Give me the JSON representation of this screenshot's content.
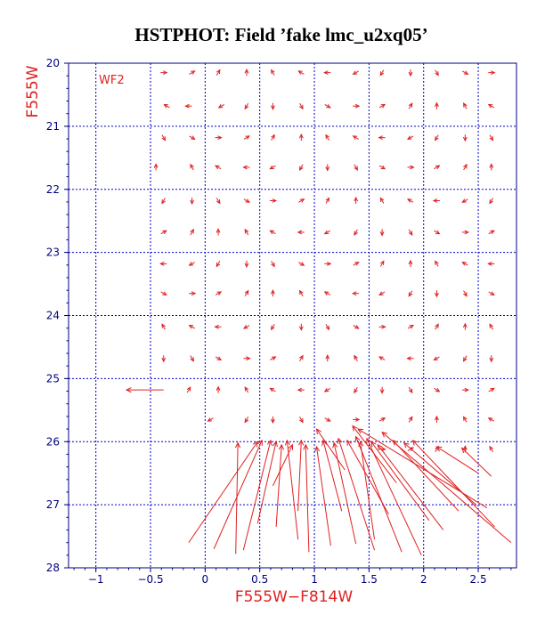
{
  "chart_data": {
    "type": "quiver",
    "title": "HSTPHOT: Field ’fake lmc_u2xq05’",
    "xlabel": "F555W−F814W",
    "ylabel": "F555W",
    "chip_label": "WF2",
    "xlim": [
      -1.25,
      2.85
    ],
    "ylim": [
      28,
      20
    ],
    "y_inverted": true,
    "grid": true,
    "x_ticks": [
      -1,
      -0.5,
      0,
      0.5,
      1,
      1.5,
      2,
      2.5
    ],
    "x_tick_labels": [
      "−1",
      "−0.5",
      "0",
      "0.5",
      "1",
      "1.5",
      "2",
      "2.5"
    ],
    "y_ticks": [
      20,
      21,
      22,
      23,
      24,
      25,
      26,
      27,
      28
    ],
    "y_tick_labels": [
      "20",
      "21",
      "22",
      "23",
      "24",
      "25",
      "26",
      "27",
      "28"
    ],
    "colors": {
      "frame": "#000080",
      "grid": "#0000cc",
      "vectors": "#e02020",
      "title": "#000000"
    },
    "small_vectors": {
      "note_grid_color_values": [
        -0.35,
        -0.1,
        0.15,
        0.35,
        0.65,
        0.85,
        1.15,
        1.35,
        1.65,
        1.85,
        2.15,
        2.35,
        2.65
      ],
      "rows": [
        {
          "mag": 20.15,
          "c": [
            -0.38,
            -0.12,
            0.12,
            0.38,
            0.62,
            0.88,
            1.12,
            1.38,
            1.62,
            1.88,
            2.12,
            2.38,
            2.62
          ]
        },
        {
          "mag": 20.68,
          "c": [
            -0.35,
            -0.15,
            0.15,
            0.38,
            0.62,
            0.88,
            1.12,
            1.38,
            1.62,
            1.88,
            2.12,
            2.38,
            2.62
          ]
        },
        {
          "mag": 21.18,
          "c": [
            -0.38,
            -0.12,
            0.12,
            0.38,
            0.62,
            0.88,
            1.12,
            1.38,
            1.62,
            1.88,
            2.12,
            2.38,
            2.62
          ]
        },
        {
          "mag": 21.65,
          "c": [
            -0.45,
            -0.12,
            0.12,
            0.38,
            0.62,
            0.88,
            1.12,
            1.38,
            1.62,
            1.88,
            2.12,
            2.38,
            2.62
          ]
        },
        {
          "mag": 22.18,
          "c": [
            -0.38,
            -0.12,
            0.12,
            0.38,
            0.62,
            0.88,
            1.12,
            1.38,
            1.62,
            1.88,
            2.12,
            2.38,
            2.62
          ]
        },
        {
          "mag": 22.68,
          "c": [
            -0.38,
            -0.12,
            0.12,
            0.38,
            0.62,
            0.88,
            1.12,
            1.38,
            1.62,
            1.88,
            2.12,
            2.38,
            2.62
          ]
        },
        {
          "mag": 23.18,
          "c": [
            -0.38,
            -0.12,
            0.12,
            0.38,
            0.62,
            0.88,
            1.12,
            1.38,
            1.62,
            1.88,
            2.12,
            2.38,
            2.62
          ]
        },
        {
          "mag": 23.65,
          "c": [
            -0.38,
            -0.12,
            0.12,
            0.38,
            0.62,
            0.88,
            1.12,
            1.38,
            1.62,
            1.88,
            2.12,
            2.38,
            2.62
          ]
        },
        {
          "mag": 24.18,
          "c": [
            -0.38,
            -0.12,
            0.12,
            0.38,
            0.62,
            0.88,
            1.12,
            1.38,
            1.62,
            1.88,
            2.12,
            2.38,
            2.62
          ]
        },
        {
          "mag": 24.68,
          "c": [
            -0.38,
            -0.12,
            0.12,
            0.38,
            0.62,
            0.88,
            1.12,
            1.38,
            1.62,
            1.88,
            2.12,
            2.38,
            2.62
          ]
        },
        {
          "mag": 25.18,
          "c": [
            -0.15,
            0.12,
            0.38,
            0.62,
            0.88,
            1.12,
            1.38,
            1.62,
            1.88,
            2.12,
            2.38,
            2.62
          ]
        },
        {
          "mag": 25.65,
          "c": [
            0.05,
            0.38,
            0.62,
            0.88,
            1.12,
            1.38,
            1.62,
            1.88,
            2.12,
            2.38,
            2.62
          ]
        },
        {
          "mag": 26.12,
          "c": [
            1.62,
            1.88,
            2.12,
            2.38,
            2.62
          ]
        }
      ]
    },
    "long_arrow_left": {
      "x1": -0.38,
      "y1": 25.18,
      "x2": -0.72,
      "y2": 25.18
    },
    "long_vectors": [
      {
        "x1": -0.15,
        "y1": 27.6,
        "x2": 0.48,
        "y2": 26.0
      },
      {
        "x1": 0.08,
        "y1": 27.7,
        "x2": 0.52,
        "y2": 25.98
      },
      {
        "x1": 0.28,
        "y1": 27.78,
        "x2": 0.3,
        "y2": 26.02
      },
      {
        "x1": 0.35,
        "y1": 27.72,
        "x2": 0.6,
        "y2": 25.98
      },
      {
        "x1": 0.48,
        "y1": 27.3,
        "x2": 0.65,
        "y2": 26.0
      },
      {
        "x1": 0.65,
        "y1": 27.35,
        "x2": 0.7,
        "y2": 26.05
      },
      {
        "x1": 0.85,
        "y1": 27.55,
        "x2": 0.75,
        "y2": 25.98
      },
      {
        "x1": 0.85,
        "y1": 27.1,
        "x2": 0.88,
        "y2": 25.98
      },
      {
        "x1": 0.62,
        "y1": 26.7,
        "x2": 0.8,
        "y2": 26.05
      },
      {
        "x1": 0.95,
        "y1": 27.75,
        "x2": 0.92,
        "y2": 26.05
      },
      {
        "x1": 1.15,
        "y1": 27.65,
        "x2": 1.02,
        "y2": 26.08
      },
      {
        "x1": 1.25,
        "y1": 27.1,
        "x2": 1.08,
        "y2": 25.98
      },
      {
        "x1": 1.38,
        "y1": 27.62,
        "x2": 1.18,
        "y2": 26.02
      },
      {
        "x1": 1.55,
        "y1": 27.72,
        "x2": 1.22,
        "y2": 25.95
      },
      {
        "x1": 1.68,
        "y1": 27.15,
        "x2": 1.3,
        "y2": 25.98
      },
      {
        "x1": 1.55,
        "y1": 27.55,
        "x2": 1.42,
        "y2": 26.0
      },
      {
        "x1": 1.8,
        "y1": 27.75,
        "x2": 1.38,
        "y2": 25.92
      },
      {
        "x1": 1.98,
        "y1": 27.8,
        "x2": 1.48,
        "y2": 25.95
      },
      {
        "x1": 2.05,
        "y1": 27.25,
        "x2": 1.52,
        "y2": 26.0
      },
      {
        "x1": 2.18,
        "y1": 27.4,
        "x2": 1.58,
        "y2": 26.05
      },
      {
        "x1": 2.32,
        "y1": 27.1,
        "x2": 1.72,
        "y2": 25.98
      },
      {
        "x1": 2.48,
        "y1": 27.0,
        "x2": 1.82,
        "y2": 26.02
      },
      {
        "x1": 2.65,
        "y1": 27.35,
        "x2": 1.9,
        "y2": 25.98
      },
      {
        "x1": 2.8,
        "y1": 27.6,
        "x2": 1.62,
        "y2": 25.85
      },
      {
        "x1": 2.58,
        "y1": 27.05,
        "x2": 1.4,
        "y2": 25.8
      },
      {
        "x1": 1.28,
        "y1": 26.45,
        "x2": 1.02,
        "y2": 25.8
      },
      {
        "x1": 1.75,
        "y1": 26.65,
        "x2": 1.35,
        "y2": 25.75
      },
      {
        "x1": 2.5,
        "y1": 26.5,
        "x2": 2.12,
        "y2": 26.08
      },
      {
        "x1": 2.62,
        "y1": 26.55,
        "x2": 2.35,
        "y2": 26.1
      }
    ]
  }
}
